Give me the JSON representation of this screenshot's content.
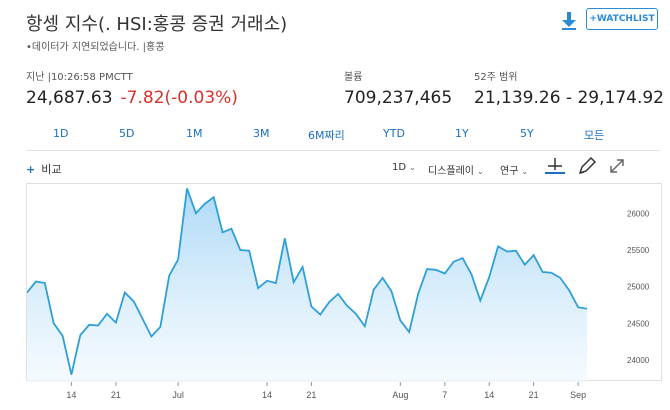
{
  "header": {
    "title": "항셍 지수(. HSI:홍콩 증권 거래소)",
    "notice": "•데이터가 지연되었습니다. |홍콩",
    "watchlist_label": "+WATCHLIST"
  },
  "stats": {
    "time_label": "지난 |10:26:58 PMCTT",
    "price": "24,687.63",
    "change": "-7.82(-0.03%)",
    "volume_label": "볼륨",
    "volume": "709,237,465",
    "range_label": "52주 범위",
    "range": "21,139.26 - 29,174.92"
  },
  "ranges": [
    "1D",
    "5D",
    "1M",
    "3M",
    "6M짜리",
    "YTD",
    "1Y",
    "5Y",
    "모든"
  ],
  "toolbar": {
    "compare_label": "비교",
    "interval": "1D",
    "display": "디스플레이",
    "study": "연구"
  },
  "icons": [
    "download-icon",
    "plus-icon",
    "crosshair-icon",
    "pencil-icon",
    "expand-icon",
    "caret-down-icon"
  ],
  "colors": {
    "accent": "#1a6fc2",
    "negative": "#d9302b",
    "line": "#2e9fd8",
    "fill_top": "#9fd3f5",
    "fill_bottom": "#f0f8fe"
  },
  "chart_data": {
    "type": "area",
    "grid": false,
    "ylim": [
      23700,
      26400
    ],
    "y_ticks": [
      24000,
      24500,
      25000,
      25500,
      26000
    ],
    "y_tick_labels": [
      "24000",
      "24500",
      "25000",
      "25500",
      "26000"
    ],
    "x_tick_labels": [
      "14",
      "21",
      "Jul",
      "14",
      "21",
      "Aug",
      "7",
      "14",
      "21",
      "Sep"
    ],
    "x_tick_index": [
      5,
      10,
      17,
      27,
      32,
      42,
      47,
      52,
      57,
      62
    ],
    "values": [
      24920,
      25070,
      25050,
      24500,
      24330,
      23800,
      24340,
      24480,
      24470,
      24630,
      24510,
      24920,
      24800,
      24560,
      24320,
      24450,
      25150,
      25370,
      26340,
      26000,
      26130,
      26220,
      25740,
      25790,
      25500,
      25490,
      24980,
      25080,
      25050,
      25660,
      25060,
      25270,
      24730,
      24620,
      24790,
      24900,
      24740,
      24630,
      24460,
      24960,
      25120,
      24940,
      24540,
      24380,
      24900,
      25240,
      25230,
      25180,
      25340,
      25390,
      25170,
      24810,
      25130,
      25550,
      25480,
      25490,
      25300,
      25430,
      25200,
      25190,
      25120,
      24950,
      24720,
      24700
    ]
  }
}
